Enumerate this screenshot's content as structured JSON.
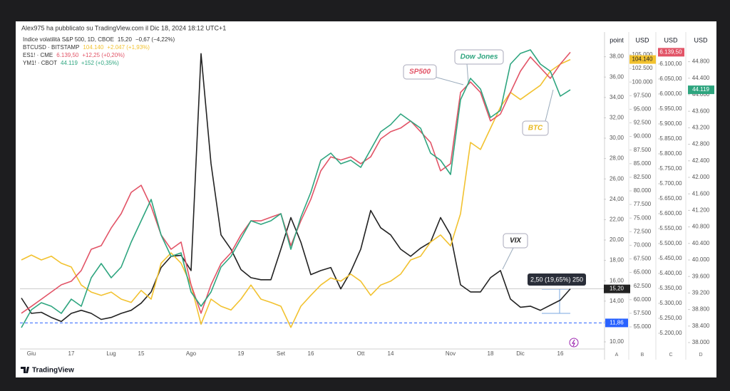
{
  "author_line": "Alex975 ha pubblicato su TradingView.com il Dic 18, 2024 18:12 UTC+1",
  "logo": "TradingView",
  "chart_data": {
    "type": "line",
    "categories": [
      null,
      "Giu",
      null,
      null,
      null,
      "17",
      null,
      null,
      null,
      "Lug",
      null,
      null,
      "15",
      null,
      null,
      null,
      null,
      "Ago",
      null,
      null,
      null,
      null,
      "19",
      null,
      null,
      null,
      "Set",
      null,
      null,
      "16",
      null,
      null,
      null,
      null,
      "Ott",
      null,
      null,
      "14",
      null,
      null,
      null,
      null,
      null,
      "Nov",
      null,
      null,
      null,
      "18",
      null,
      null,
      "Dic",
      null,
      null,
      null,
      "16",
      null
    ],
    "axis_titles": [
      "point",
      "USD",
      "USD",
      "USD"
    ],
    "axis_letters": [
      "A",
      "B",
      "C",
      "D"
    ],
    "grid": false,
    "ylim": [
      9.3,
      40.42
    ],
    "yticks": [
      {
        "value": 10,
        "label": "10,00"
      },
      {
        "value": 12,
        "label": "12,00"
      },
      {
        "value": 14,
        "label": "14,00"
      },
      {
        "value": 16,
        "label": "16,00"
      },
      {
        "value": 18,
        "label": "18,00"
      },
      {
        "value": 20,
        "label": "20,00"
      },
      {
        "value": 22,
        "label": "22,00"
      },
      {
        "value": 24,
        "label": "24,00"
      },
      {
        "value": 26,
        "label": "26,00"
      },
      {
        "value": 28,
        "label": "28,00"
      },
      {
        "value": 30,
        "label": "30,00"
      },
      {
        "value": 32,
        "label": "32,00"
      },
      {
        "value": 34,
        "label": "34,00"
      },
      {
        "value": 36,
        "label": "36,00"
      },
      {
        "value": 38,
        "label": "38,00"
      }
    ],
    "y2lim": [
      50940,
      109190
    ],
    "y2ticks": [
      {
        "value": 55000,
        "label": "55.000"
      },
      {
        "value": 57500,
        "label": "57.500"
      },
      {
        "value": 60000,
        "label": "60.000"
      },
      {
        "value": 62500,
        "label": "62.500"
      },
      {
        "value": 65000,
        "label": "65.000"
      },
      {
        "value": 67500,
        "label": "67.500"
      },
      {
        "value": 70000,
        "label": "70.000"
      },
      {
        "value": 72500,
        "label": "72.500"
      },
      {
        "value": 75000,
        "label": "75.000"
      },
      {
        "value": 77500,
        "label": "77.500"
      },
      {
        "value": 80000,
        "label": "80.000"
      },
      {
        "value": 82500,
        "label": "82.500"
      },
      {
        "value": 85000,
        "label": "85.000"
      },
      {
        "value": 87500,
        "label": "87.500"
      },
      {
        "value": 90000,
        "label": "90.000"
      },
      {
        "value": 92500,
        "label": "92.500"
      },
      {
        "value": 95000,
        "label": "95.000"
      },
      {
        "value": 97500,
        "label": "97.500"
      },
      {
        "value": 100000,
        "label": "100.000"
      },
      {
        "value": 102500,
        "label": "102.500"
      },
      {
        "value": 105000,
        "label": "105.000"
      }
    ],
    "y3lim": [
      5147.6,
      6207
    ],
    "y3ticks": [
      {
        "value": 5200,
        "label": "5.200,00"
      },
      {
        "value": 5250,
        "label": "5.250,00"
      },
      {
        "value": 5300,
        "label": "5.300,00"
      },
      {
        "value": 5350,
        "label": "5.350,00"
      },
      {
        "value": 5400,
        "label": "5.400,00"
      },
      {
        "value": 5450,
        "label": "5.450,00"
      },
      {
        "value": 5500,
        "label": "5.500,00"
      },
      {
        "value": 5550,
        "label": "5.550,00"
      },
      {
        "value": 5600,
        "label": "5.600,00"
      },
      {
        "value": 5650,
        "label": "5.650,00"
      },
      {
        "value": 5700,
        "label": "5.700,00"
      },
      {
        "value": 5750,
        "label": "5.750,00"
      },
      {
        "value": 5800,
        "label": "5.800,00"
      },
      {
        "value": 5850,
        "label": "5.850,00"
      },
      {
        "value": 5900,
        "label": "5.900,00"
      },
      {
        "value": 5950,
        "label": "5.950,00"
      },
      {
        "value": 6000,
        "label": "6.000,00"
      },
      {
        "value": 6050,
        "label": "6.050,00"
      },
      {
        "value": 6100,
        "label": "6.100,00"
      }
    ],
    "y4lim": [
      37845,
      45517
    ],
    "y4ticks": [
      {
        "value": 38000,
        "label": "38.000"
      },
      {
        "value": 38400,
        "label": "38.400"
      },
      {
        "value": 38800,
        "label": "38.800"
      },
      {
        "value": 39200,
        "label": "39.200"
      },
      {
        "value": 39600,
        "label": "39.600"
      },
      {
        "value": 40000,
        "label": "40.000"
      },
      {
        "value": 40400,
        "label": "40.400"
      },
      {
        "value": 40800,
        "label": "40.800"
      },
      {
        "value": 41200,
        "label": "41.200"
      },
      {
        "value": 41600,
        "label": "41.600"
      },
      {
        "value": 42000,
        "label": "42.000"
      },
      {
        "value": 42400,
        "label": "42.400"
      },
      {
        "value": 42800,
        "label": "42.800"
      },
      {
        "value": 43200,
        "label": "43.200"
      },
      {
        "value": 43600,
        "label": "43.600"
      },
      {
        "value": 44000,
        "label": "44.000"
      },
      {
        "value": 44400,
        "label": "44.400"
      },
      {
        "value": 44800,
        "label": "44.800"
      }
    ],
    "hline": {
      "value": 11.86,
      "label": "11,86",
      "color": "#2962ff"
    },
    "measure_label": "2,50 (19,65%) 250",
    "annotations": [
      "Dow Jones",
      "SP500",
      "BTC",
      "VIX"
    ],
    "series": [
      {
        "name": "Indice volatilità S&P 500, 1D, CBOE",
        "legend_value": "15,20",
        "legend_change": "−0,67 (−4,22%)",
        "color": "#222222",
        "axis": "y",
        "values": [
          14.3,
          12.8,
          12.9,
          12.4,
          12.0,
          12.8,
          13.1,
          12.8,
          12.2,
          12.4,
          12.8,
          13.1,
          13.8,
          14.9,
          17.3,
          18.4,
          18.5,
          17.0,
          38.3,
          27.5,
          20.5,
          19.1,
          17.1,
          16.3,
          16.1,
          16.1,
          19.1,
          22.2,
          19.8,
          16.6,
          17.0,
          17.3,
          15.2,
          16.9,
          19.1,
          22.9,
          21.2,
          20.5,
          19.1,
          18.4,
          19.2,
          19.8,
          22.2,
          20.5,
          15.6,
          14.9,
          14.9,
          16.3,
          17.0,
          14.2,
          13.4,
          13.5,
          13.1,
          13.6,
          14.1,
          15.2
        ]
      },
      {
        "name": "BTCUSD · BITSTAMP",
        "legend_value": "104.140",
        "legend_change": "+2.047 (+1,93%)",
        "color": "#f2c230",
        "axis": "y2",
        "values": [
          67300,
          68200,
          67300,
          68000,
          66700,
          66000,
          62700,
          61400,
          60800,
          61400,
          60100,
          59500,
          61700,
          60100,
          66700,
          68600,
          66700,
          62700,
          55500,
          60100,
          58800,
          58100,
          60100,
          62700,
          60100,
          59500,
          58800,
          54900,
          58800,
          60800,
          62700,
          64000,
          63400,
          64700,
          63400,
          60800,
          62700,
          63400,
          64700,
          67300,
          68000,
          70600,
          71900,
          69900,
          75800,
          88900,
          87600,
          91500,
          95400,
          98100,
          96800,
          98100,
          99400,
          102000,
          103300,
          104140
        ]
      },
      {
        "name": "ES1! · CME",
        "legend_value": "6.139,50",
        "legend_change": "+12,25 (+0,20%)",
        "color": "#e25467",
        "axis": "y3",
        "values": [
          5267,
          5290,
          5314,
          5338,
          5362,
          5374,
          5410,
          5481,
          5493,
          5552,
          5600,
          5671,
          5695,
          5624,
          5529,
          5481,
          5505,
          5362,
          5267,
          5362,
          5433,
          5469,
          5529,
          5576,
          5576,
          5588,
          5600,
          5493,
          5576,
          5648,
          5743,
          5790,
          5779,
          5790,
          5767,
          5790,
          5850,
          5874,
          5886,
          5910,
          5874,
          5838,
          5743,
          5767,
          6005,
          6040,
          6005,
          5910,
          5933,
          6005,
          6076,
          6124,
          6088,
          6052,
          6100,
          6139.5
        ]
      },
      {
        "name": "YM1! · CBOT",
        "legend_value": "44.119",
        "legend_change": "+152 (+0,35%)",
        "color": "#2ea57f",
        "axis": "y4",
        "values": [
          38362,
          38793,
          38965,
          38879,
          38707,
          39052,
          38879,
          39569,
          39914,
          39569,
          39827,
          40431,
          40948,
          41465,
          40603,
          40086,
          40172,
          39224,
          38879,
          39224,
          39827,
          40086,
          40517,
          40948,
          40862,
          40948,
          41120,
          40258,
          41034,
          41638,
          42413,
          42586,
          42327,
          42413,
          42241,
          42672,
          43103,
          43275,
          43534,
          43362,
          43189,
          42586,
          42413,
          42069,
          43879,
          44396,
          44137,
          43448,
          43620,
          44741,
          45000,
          45086,
          44741,
          44568,
          43965,
          44119
        ]
      }
    ]
  }
}
